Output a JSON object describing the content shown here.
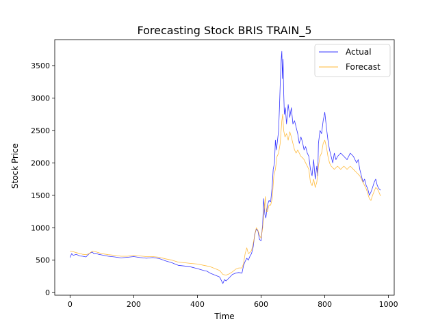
{
  "chart_data": {
    "type": "line",
    "title": "Forecasting Stock BRIS TRAIN_5",
    "xlabel": "Time",
    "ylabel": "Stock Price",
    "xlim": [
      -48,
      1018
    ],
    "ylim": [
      -40,
      3900
    ],
    "x_ticks": [
      0,
      200,
      400,
      600,
      800,
      1000
    ],
    "y_ticks": [
      0,
      500,
      1000,
      1500,
      2000,
      2500,
      3000,
      3500
    ],
    "grid": false,
    "legend_position": "top-right",
    "series": [
      {
        "name": "Actual",
        "color": "#0000ff",
        "points": [
          [
            0,
            540
          ],
          [
            5,
            600
          ],
          [
            10,
            575
          ],
          [
            20,
            590
          ],
          [
            30,
            565
          ],
          [
            40,
            560
          ],
          [
            50,
            550
          ],
          [
            60,
            600
          ],
          [
            65,
            615
          ],
          [
            70,
            625
          ],
          [
            75,
            600
          ],
          [
            80,
            605
          ],
          [
            90,
            590
          ],
          [
            100,
            580
          ],
          [
            120,
            560
          ],
          [
            140,
            550
          ],
          [
            160,
            535
          ],
          [
            180,
            545
          ],
          [
            200,
            555
          ],
          [
            220,
            540
          ],
          [
            240,
            530
          ],
          [
            260,
            540
          ],
          [
            280,
            525
          ],
          [
            300,
            490
          ],
          [
            320,
            460
          ],
          [
            340,
            420
          ],
          [
            360,
            410
          ],
          [
            380,
            395
          ],
          [
            400,
            370
          ],
          [
            420,
            340
          ],
          [
            430,
            330
          ],
          [
            440,
            300
          ],
          [
            450,
            280
          ],
          [
            460,
            260
          ],
          [
            470,
            240
          ],
          [
            475,
            190
          ],
          [
            480,
            140
          ],
          [
            485,
            200
          ],
          [
            490,
            180
          ],
          [
            500,
            230
          ],
          [
            510,
            280
          ],
          [
            520,
            300
          ],
          [
            530,
            310
          ],
          [
            540,
            300
          ],
          [
            545,
            420
          ],
          [
            550,
            480
          ],
          [
            555,
            530
          ],
          [
            560,
            500
          ],
          [
            565,
            560
          ],
          [
            570,
            600
          ],
          [
            575,
            700
          ],
          [
            580,
            900
          ],
          [
            585,
            980
          ],
          [
            590,
            950
          ],
          [
            595,
            820
          ],
          [
            600,
            800
          ],
          [
            605,
            1050
          ],
          [
            608,
            1450
          ],
          [
            612,
            1200
          ],
          [
            615,
            1150
          ],
          [
            620,
            1350
          ],
          [
            625,
            1420
          ],
          [
            630,
            1400
          ],
          [
            635,
            1650
          ],
          [
            638,
            1900
          ],
          [
            642,
            2000
          ],
          [
            645,
            2350
          ],
          [
            648,
            2200
          ],
          [
            650,
            2280
          ],
          [
            655,
            2500
          ],
          [
            658,
            2900
          ],
          [
            660,
            3200
          ],
          [
            663,
            3580
          ],
          [
            665,
            3720
          ],
          [
            667,
            3300
          ],
          [
            669,
            3600
          ],
          [
            671,
            3100
          ],
          [
            673,
            2750
          ],
          [
            676,
            2850
          ],
          [
            680,
            2600
          ],
          [
            685,
            2900
          ],
          [
            690,
            2700
          ],
          [
            695,
            2850
          ],
          [
            700,
            2600
          ],
          [
            705,
            2650
          ],
          [
            710,
            2550
          ],
          [
            715,
            2450
          ],
          [
            720,
            2300
          ],
          [
            725,
            2400
          ],
          [
            730,
            2320
          ],
          [
            735,
            2200
          ],
          [
            740,
            2250
          ],
          [
            745,
            2150
          ],
          [
            750,
            2100
          ],
          [
            755,
            1900
          ],
          [
            760,
            1800
          ],
          [
            765,
            2050
          ],
          [
            770,
            1750
          ],
          [
            775,
            1950
          ],
          [
            778,
            1800
          ],
          [
            780,
            2300
          ],
          [
            785,
            2500
          ],
          [
            790,
            2450
          ],
          [
            795,
            2650
          ],
          [
            800,
            2780
          ],
          [
            805,
            2550
          ],
          [
            810,
            2350
          ],
          [
            815,
            2200
          ],
          [
            820,
            2100
          ],
          [
            825,
            2000
          ],
          [
            830,
            2150
          ],
          [
            835,
            2050
          ],
          [
            840,
            2100
          ],
          [
            850,
            2150
          ],
          [
            860,
            2100
          ],
          [
            870,
            2050
          ],
          [
            880,
            2150
          ],
          [
            890,
            2100
          ],
          [
            900,
            2000
          ],
          [
            905,
            2050
          ],
          [
            910,
            1900
          ],
          [
            915,
            1800
          ],
          [
            920,
            1700
          ],
          [
            925,
            1750
          ],
          [
            930,
            1650
          ],
          [
            935,
            1600
          ],
          [
            940,
            1500
          ],
          [
            945,
            1550
          ],
          [
            950,
            1620
          ],
          [
            955,
            1700
          ],
          [
            960,
            1750
          ],
          [
            965,
            1650
          ],
          [
            970,
            1600
          ],
          [
            975,
            1580
          ]
        ]
      },
      {
        "name": "Forecast",
        "color": "#ffa500",
        "points": [
          [
            0,
            640
          ],
          [
            10,
            630
          ],
          [
            20,
            615
          ],
          [
            30,
            605
          ],
          [
            40,
            590
          ],
          [
            50,
            585
          ],
          [
            60,
            600
          ],
          [
            70,
            640
          ],
          [
            80,
            630
          ],
          [
            100,
            600
          ],
          [
            120,
            585
          ],
          [
            140,
            575
          ],
          [
            160,
            560
          ],
          [
            180,
            560
          ],
          [
            200,
            575
          ],
          [
            220,
            565
          ],
          [
            240,
            555
          ],
          [
            260,
            555
          ],
          [
            280,
            545
          ],
          [
            300,
            520
          ],
          [
            320,
            500
          ],
          [
            340,
            470
          ],
          [
            360,
            460
          ],
          [
            380,
            450
          ],
          [
            400,
            440
          ],
          [
            420,
            420
          ],
          [
            440,
            400
          ],
          [
            460,
            360
          ],
          [
            470,
            340
          ],
          [
            480,
            280
          ],
          [
            490,
            270
          ],
          [
            500,
            290
          ],
          [
            510,
            320
          ],
          [
            520,
            360
          ],
          [
            530,
            380
          ],
          [
            540,
            380
          ],
          [
            545,
            450
          ],
          [
            550,
            600
          ],
          [
            555,
            690
          ],
          [
            560,
            600
          ],
          [
            565,
            620
          ],
          [
            570,
            650
          ],
          [
            575,
            750
          ],
          [
            580,
            880
          ],
          [
            585,
            1000
          ],
          [
            590,
            960
          ],
          [
            595,
            880
          ],
          [
            600,
            840
          ],
          [
            605,
            1000
          ],
          [
            610,
            1300
          ],
          [
            613,
            1480
          ],
          [
            617,
            1250
          ],
          [
            620,
            1250
          ],
          [
            625,
            1350
          ],
          [
            630,
            1350
          ],
          [
            635,
            1450
          ],
          [
            640,
            1800
          ],
          [
            645,
            1900
          ],
          [
            650,
            2100
          ],
          [
            655,
            2150
          ],
          [
            660,
            2300
          ],
          [
            665,
            2650
          ],
          [
            668,
            2750
          ],
          [
            671,
            2500
          ],
          [
            675,
            2400
          ],
          [
            680,
            2450
          ],
          [
            685,
            2350
          ],
          [
            690,
            2480
          ],
          [
            695,
            2400
          ],
          [
            700,
            2300
          ],
          [
            705,
            2200
          ],
          [
            710,
            2150
          ],
          [
            715,
            2200
          ],
          [
            720,
            2150
          ],
          [
            725,
            2100
          ],
          [
            730,
            2080
          ],
          [
            735,
            2050
          ],
          [
            740,
            2000
          ],
          [
            745,
            1950
          ],
          [
            750,
            1900
          ],
          [
            755,
            1700
          ],
          [
            760,
            1650
          ],
          [
            765,
            1750
          ],
          [
            770,
            1620
          ],
          [
            775,
            1700
          ],
          [
            780,
            1950
          ],
          [
            785,
            2100
          ],
          [
            790,
            2150
          ],
          [
            795,
            2300
          ],
          [
            800,
            2350
          ],
          [
            805,
            2250
          ],
          [
            810,
            2100
          ],
          [
            815,
            2000
          ],
          [
            820,
            1950
          ],
          [
            830,
            1900
          ],
          [
            840,
            1950
          ],
          [
            850,
            1900
          ],
          [
            860,
            1950
          ],
          [
            870,
            1900
          ],
          [
            880,
            1950
          ],
          [
            890,
            1900
          ],
          [
            900,
            1850
          ],
          [
            910,
            1800
          ],
          [
            920,
            1700
          ],
          [
            930,
            1600
          ],
          [
            940,
            1450
          ],
          [
            945,
            1420
          ],
          [
            950,
            1500
          ],
          [
            955,
            1560
          ],
          [
            960,
            1620
          ],
          [
            965,
            1600
          ],
          [
            970,
            1550
          ],
          [
            975,
            1490
          ]
        ]
      }
    ]
  }
}
